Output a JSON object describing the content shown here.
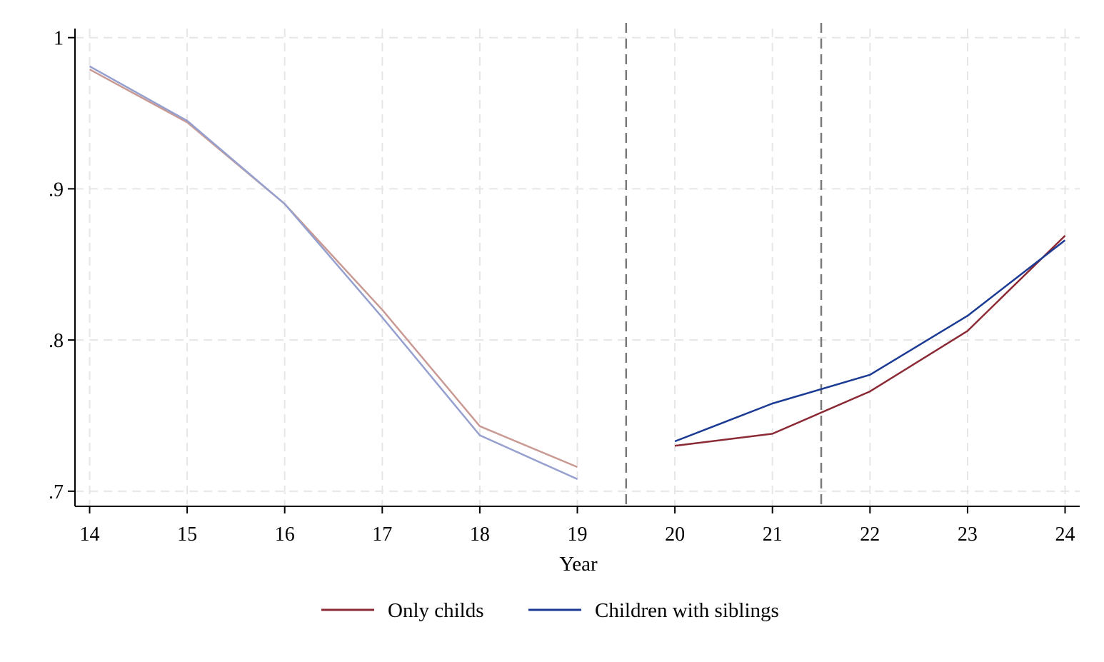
{
  "chart_data": {
    "type": "line",
    "title": "",
    "xlabel": "Year",
    "ylabel": "",
    "x_ticks": [
      14,
      15,
      16,
      17,
      18,
      19,
      20,
      21,
      22,
      23,
      24
    ],
    "y_ticks": [
      {
        "value": 0.7,
        "label": ".7"
      },
      {
        "value": 0.8,
        "label": ".8"
      },
      {
        "value": 0.9,
        "label": ".9"
      },
      {
        "value": 1.0,
        "label": "1"
      }
    ],
    "xlim": [
      13.85,
      24.15
    ],
    "ylim": [
      0.69,
      1.006
    ],
    "grid": true,
    "legend_position": "bottom",
    "reference_lines_x": [
      19.5,
      21.5
    ],
    "series": [
      {
        "name": "Only childs",
        "color": "#8B2A35",
        "faded_color": "#C99A93",
        "segments": [
          {
            "style": "faded",
            "x": [
              14,
              15,
              16,
              17,
              18,
              19
            ],
            "y": [
              0.979,
              0.944,
              0.89,
              0.82,
              0.743,
              0.716
            ]
          },
          {
            "style": "solid",
            "x": [
              20,
              21,
              22,
              23,
              24
            ],
            "y": [
              0.73,
              0.738,
              0.766,
              0.806,
              0.869
            ]
          }
        ]
      },
      {
        "name": "Children with siblings",
        "color": "#1A3A93",
        "faded_color": "#95A0CF",
        "segments": [
          {
            "style": "faded",
            "x": [
              14,
              15,
              16,
              17,
              18,
              19
            ],
            "y": [
              0.981,
              0.945,
              0.89,
              0.815,
              0.737,
              0.708
            ]
          },
          {
            "style": "solid",
            "x": [
              20,
              21,
              22,
              23,
              24
            ],
            "y": [
              0.733,
              0.758,
              0.777,
              0.816,
              0.866
            ]
          }
        ]
      }
    ]
  }
}
